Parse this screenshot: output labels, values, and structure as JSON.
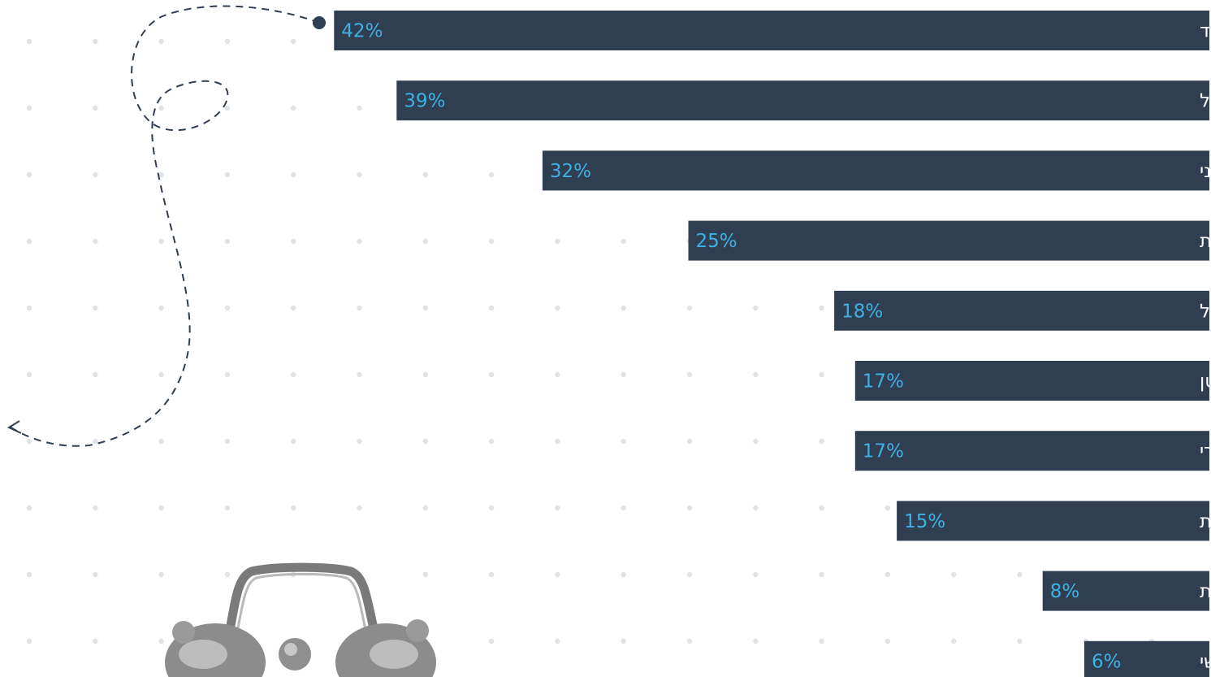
{
  "colors": {
    "bar": "#2f3e50",
    "value_text": "#3fb1e3",
    "label_text": "#ffffff",
    "dots": "#dfe3e8",
    "path": "#2f3e50"
  },
  "chart_data": {
    "type": "bar",
    "orientation": "horizontal",
    "direction": "right-to-left",
    "unit": "%",
    "categories": [
      "מגה משרד",
      "משרד גדול",
      "משרד בינוני",
      "חברה נסחרת בחו״ל / דואלית",
      "חברה נסחרת בישראל",
      "משרד קטן",
      "מגזר ציבורי",
      "חברה פרטית",
      "חברה ממשלתית",
      "מגזר שלישי"
    ],
    "values": [
      42,
      39,
      32,
      25,
      18,
      17,
      17,
      15,
      8,
      6
    ],
    "value_labels": [
      "42%",
      "39%",
      "32%",
      "25%",
      "18%",
      "17%",
      "17%",
      "15%",
      "8%",
      "6%"
    ],
    "title": "",
    "xlabel": "",
    "ylabel": "",
    "xlim": [
      0,
      42
    ],
    "grid": false,
    "legend": "none"
  },
  "decorations": {
    "clock_icon": "alarm-clock-icon",
    "path_icon": "dashed-loop-arrow-icon"
  }
}
